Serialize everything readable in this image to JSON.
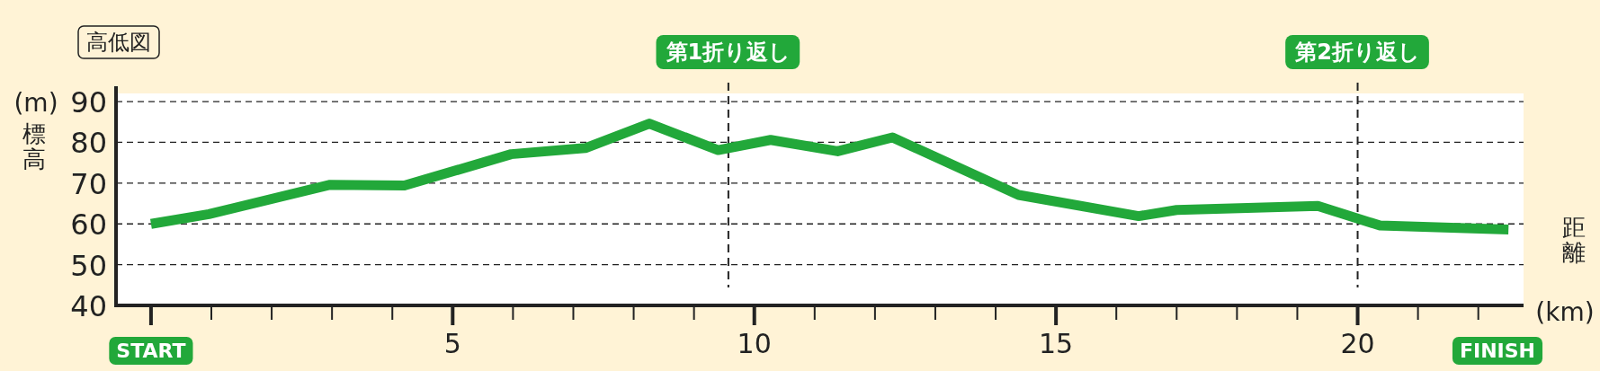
{
  "chart_data": {
    "type": "line",
    "title": "高低図",
    "ylabel": "標高",
    "xlabel": "距離",
    "x": [
      0,
      0.96,
      2.97,
      4.2,
      5.97,
      7.2,
      8.26,
      9.4,
      10.27,
      11.38,
      12.29,
      14.38,
      16.37,
      17.0,
      19.34,
      20.37,
      22.5
    ],
    "series": [
      {
        "color": "#22a83a",
        "values": [
          60,
          62.4,
          69.6,
          69.4,
          77.1,
          78.6,
          84.6,
          78.1,
          80.6,
          77.8,
          81.2,
          67.1,
          61.9,
          63.4,
          64.4,
          59.6,
          58.6
        ]
      }
    ],
    "xlim": [
      -0.58,
      22.75
    ],
    "ylim": [
      40,
      92
    ],
    "xticks": [
      {
        "value": 0,
        "label": "START"
      },
      {
        "value": 1,
        "label": null
      },
      {
        "value": 2,
        "label": null
      },
      {
        "value": 3,
        "label": null
      },
      {
        "value": 4,
        "label": null
      },
      5,
      {
        "value": 6,
        "label": null
      },
      {
        "value": 7,
        "label": null
      },
      {
        "value": 8,
        "label": null
      },
      {
        "value": 9,
        "label": null
      },
      10,
      {
        "value": 11,
        "label": null
      },
      {
        "value": 12,
        "label": null
      },
      {
        "value": 13,
        "label": null
      },
      {
        "value": 14,
        "label": null
      },
      15,
      {
        "value": 16,
        "label": null
      },
      {
        "value": 17,
        "label": null
      },
      {
        "value": 18,
        "label": null
      },
      {
        "value": 19,
        "label": null
      },
      20,
      {
        "value": 21,
        "label": null
      },
      {
        "value": 22,
        "label": null
      }
    ],
    "yticks": [
      40,
      50,
      60,
      70,
      80,
      90
    ],
    "grid": "y",
    "line_style": "solid",
    "marker": "none",
    "ref_lines": [
      {
        "axis": "x",
        "value": 9.57,
        "label": "第1折り返し",
        "color": "#222222",
        "line_style": "dashed"
      },
      {
        "axis": "x",
        "value": 20,
        "label": "第2折り返し",
        "color": "#222222",
        "line_style": "dashed"
      }
    ],
    "annotations": [
      "(m)",
      "(km)",
      "FINISH"
    ]
  }
}
